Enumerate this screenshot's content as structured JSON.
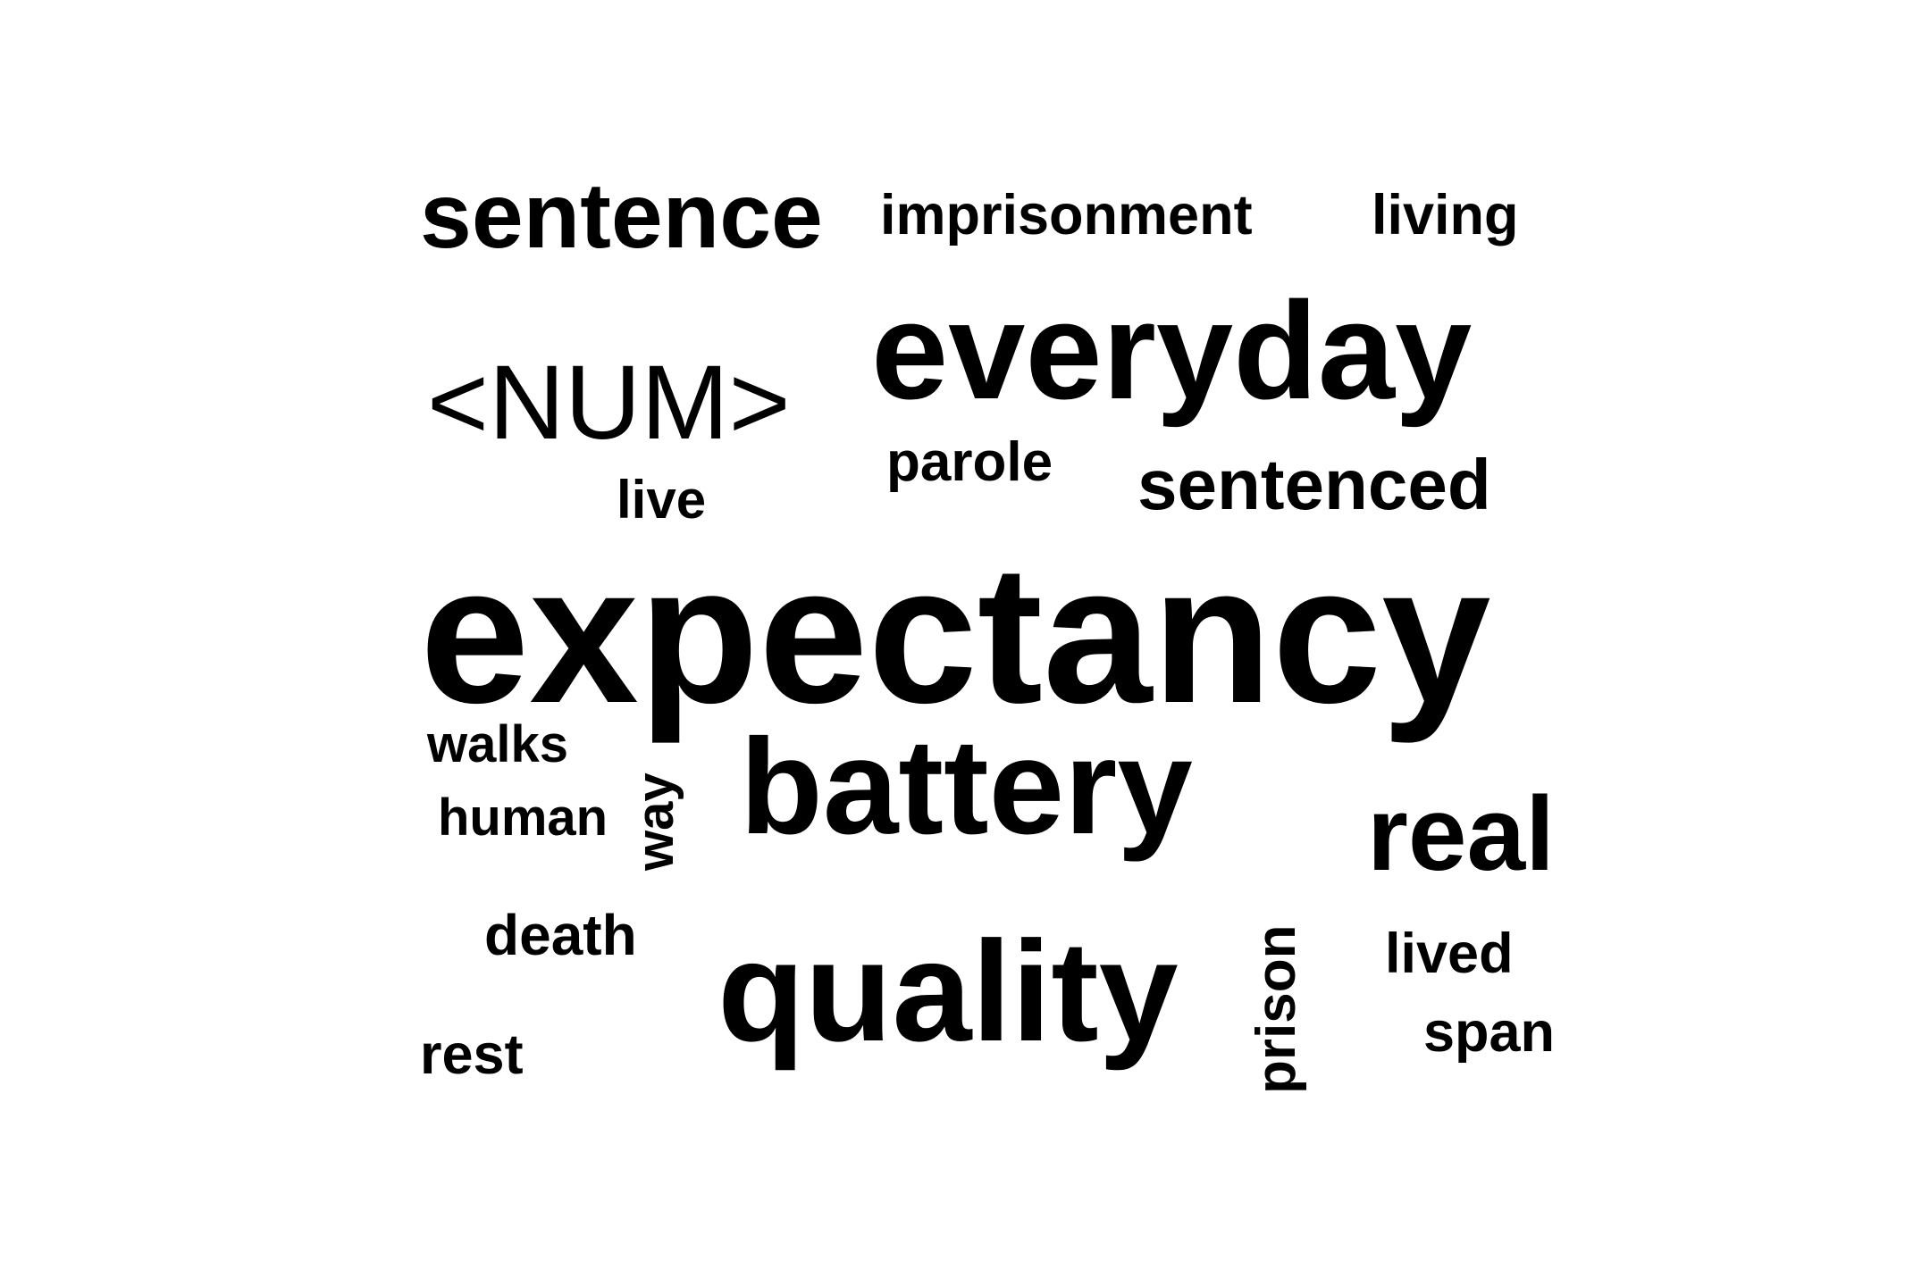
{
  "cloud": {
    "background": "#ffffff",
    "text_color": "#000000",
    "words": {
      "sentence": "sentence",
      "imprisonment": "imprisonment",
      "living": "living",
      "num": "<NUM>",
      "everyday": "everyday",
      "parole": "parole",
      "sentenced": "sentenced",
      "live": "live",
      "expectancy": "expectancy",
      "walks": "walks",
      "battery": "battery",
      "human": "human",
      "way": "way",
      "real": "real",
      "death": "death",
      "quality": "quality",
      "prison": "prison",
      "lived": "lived",
      "rest": "rest",
      "span": "span"
    }
  }
}
